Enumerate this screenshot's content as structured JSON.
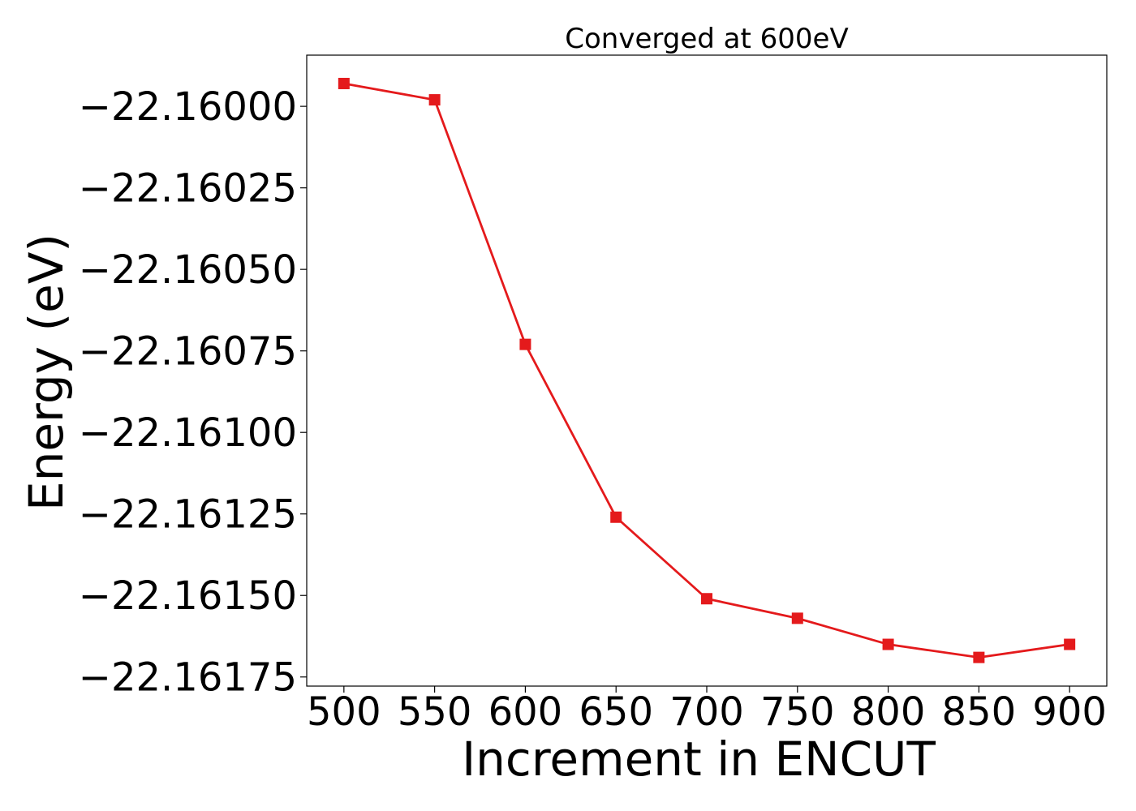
{
  "chart_data": {
    "type": "line",
    "title": "Converged at 600eV",
    "xlabel": "Increment in ENCUT",
    "ylabel": "Energy (eV)",
    "x": [
      500,
      550,
      600,
      650,
      700,
      750,
      800,
      850,
      900
    ],
    "series": [
      {
        "values": [
          -22.15993,
          -22.15998,
          -22.16073,
          -22.16126,
          -22.16151,
          -22.16157,
          -22.16165,
          -22.16169,
          -22.16165
        ],
        "color": "#e41a1c",
        "marker": "square"
      }
    ],
    "x_ticks": [
      500,
      550,
      600,
      650,
      700,
      750,
      800,
      850,
      900
    ],
    "x_tick_labels": [
      "500",
      "550",
      "600",
      "650",
      "700",
      "750",
      "800",
      "850",
      "900"
    ],
    "y_ticks": [
      -22.16,
      -22.16025,
      -22.1605,
      -22.16075,
      -22.161,
      -22.16125,
      -22.1615,
      -22.16175
    ],
    "y_tick_labels": [
      "−22.16000",
      "−22.16025",
      "−22.16050",
      "−22.16075",
      "−22.16100",
      "−22.16125",
      "−22.16150",
      "−22.16175"
    ],
    "xlim": [
      479.5,
      920.5
    ],
    "ylim": [
      -22.161778,
      -22.159843
    ],
    "grid": false,
    "legend": "none"
  }
}
